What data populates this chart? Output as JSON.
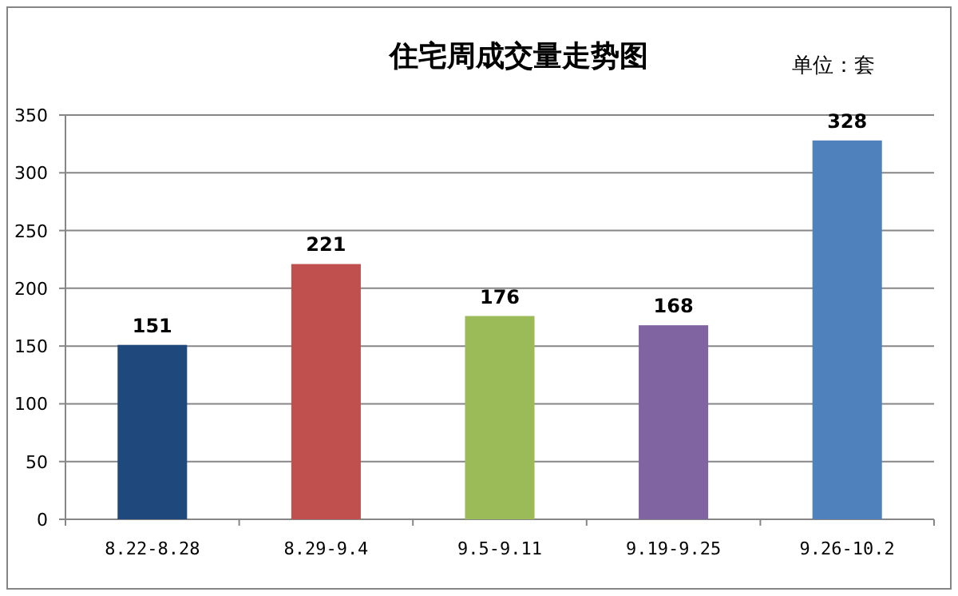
{
  "chart_data": {
    "type": "bar",
    "title": "住宅周成交量走势图",
    "annotations": [
      "单位：套"
    ],
    "categories": [
      "8.22-8.28",
      "8.29-9.4",
      "9.5-9.11",
      "9.19-9.25",
      "9.26-10.2"
    ],
    "values": [
      151,
      221,
      176,
      168,
      328
    ],
    "colors": [
      "#1f497d",
      "#c0504d",
      "#9bbb59",
      "#8064a2",
      "#4f81bd"
    ],
    "ylim": [
      0,
      350
    ],
    "yticks": [
      0,
      50,
      100,
      150,
      200,
      250,
      300,
      350
    ],
    "grid": "y",
    "data_labels": true
  }
}
